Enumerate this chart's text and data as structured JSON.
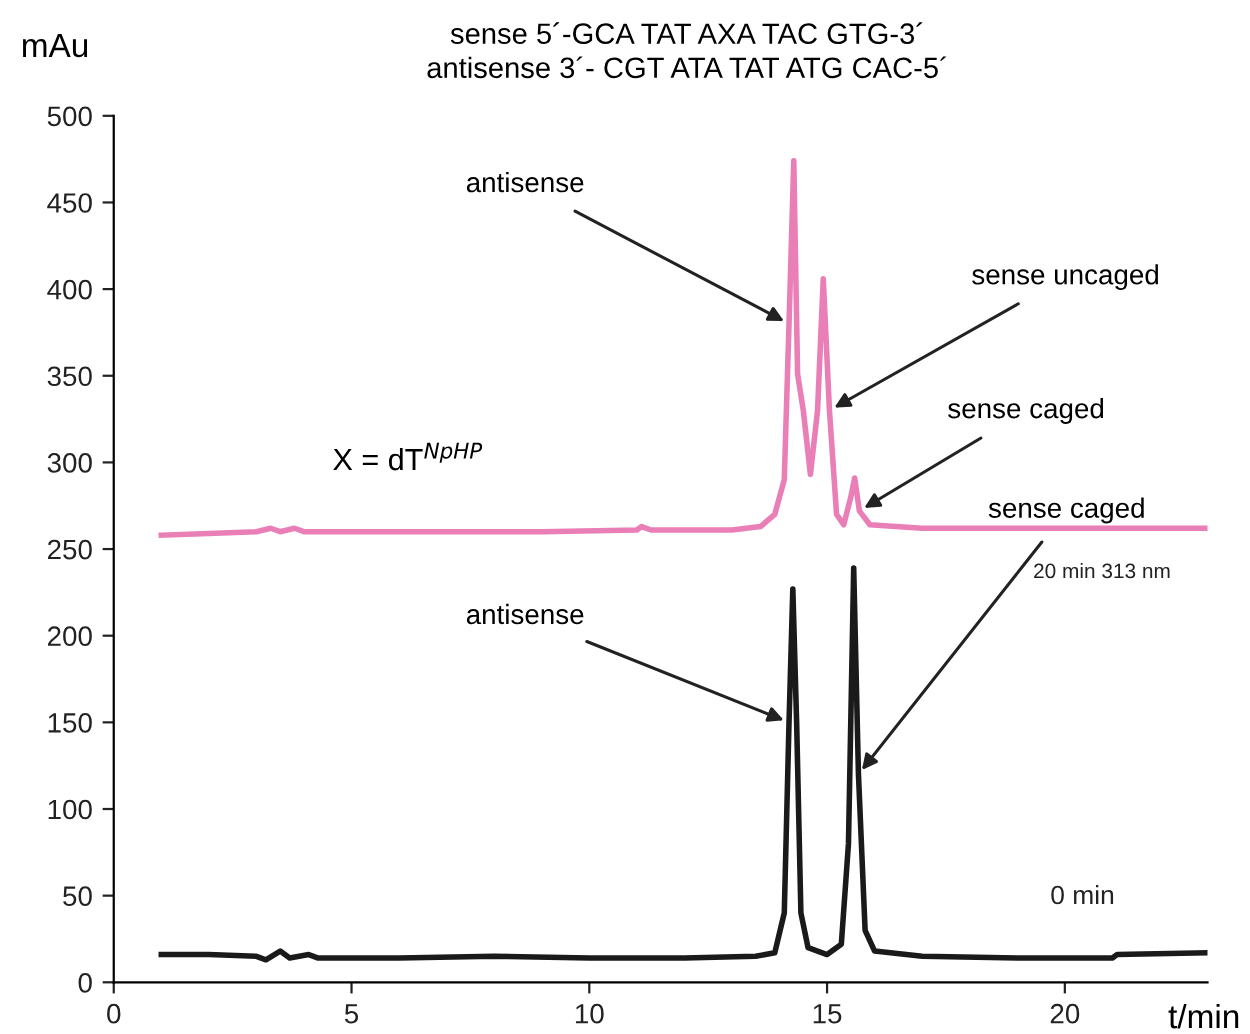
{
  "chart_data": {
    "type": "line",
    "title": "sense 5´-GCA TAT AXA TAC GTG-3´",
    "subtitle": "antisense 3´- CGT ATA TAT ATG CAC-5´",
    "xlabel": "t/min",
    "ylabel": "mAu",
    "xlim": [
      0,
      23
    ],
    "ylim": [
      0,
      500
    ],
    "xticks": [
      0,
      5,
      10,
      15,
      20
    ],
    "yticks": [
      0,
      50,
      100,
      150,
      200,
      250,
      300,
      350,
      400,
      450,
      500
    ],
    "grid": false,
    "legend": false,
    "marker": "none",
    "line_style": "solid",
    "series": [
      {
        "name": "20 min 313 nm",
        "color": "#e97fb6",
        "x": [
          1,
          2,
          3,
          3.3,
          3.5,
          3.8,
          4,
          6,
          9,
          11,
          11.1,
          11.3,
          13,
          13.6,
          13.9,
          14.1,
          14.2,
          14.3,
          14.38,
          14.5,
          14.65,
          14.8,
          14.92,
          15.05,
          15.2,
          15.35,
          15.5,
          15.58,
          15.68,
          15.9,
          17,
          20,
          23
        ],
        "values": [
          258,
          259,
          260,
          262,
          260,
          262,
          260,
          260,
          260,
          261,
          263,
          261,
          261,
          263,
          270,
          290,
          380,
          474,
          351,
          330,
          293,
          330,
          406,
          330,
          270,
          264,
          280,
          291,
          272,
          264,
          262,
          262,
          262
        ]
      },
      {
        "name": "0 min",
        "color": "#1a1a1a",
        "x": [
          1,
          2,
          3,
          3.2,
          3.5,
          3.7,
          4.1,
          4.3,
          6,
          8,
          10,
          12,
          13.5,
          13.9,
          14.1,
          14.2,
          14.28,
          14.36,
          14.45,
          14.6,
          15,
          15.3,
          15.45,
          15.56,
          15.66,
          15.8,
          16,
          17,
          19,
          21,
          21.1,
          23
        ],
        "values": [
          16,
          16,
          15,
          13,
          18,
          14,
          16,
          14,
          14,
          15,
          14,
          14,
          15,
          17,
          40,
          150,
          227,
          150,
          40,
          20,
          16,
          22,
          80,
          239,
          120,
          30,
          18,
          15,
          14,
          14,
          16,
          17
        ]
      }
    ],
    "annotations": [
      {
        "text": "antisense",
        "x": 14.2,
        "y": 380
      },
      {
        "text": "sense uncaged",
        "x": 15.05,
        "y": 330
      },
      {
        "text": "sense caged",
        "x": 15.68,
        "y": 272
      },
      {
        "text": "antisense",
        "x": 14.2,
        "y": 150
      },
      {
        "text": "sense caged",
        "x": 15.66,
        "y": 120
      },
      "X = dT$^{NpHP}$"
    ]
  }
}
